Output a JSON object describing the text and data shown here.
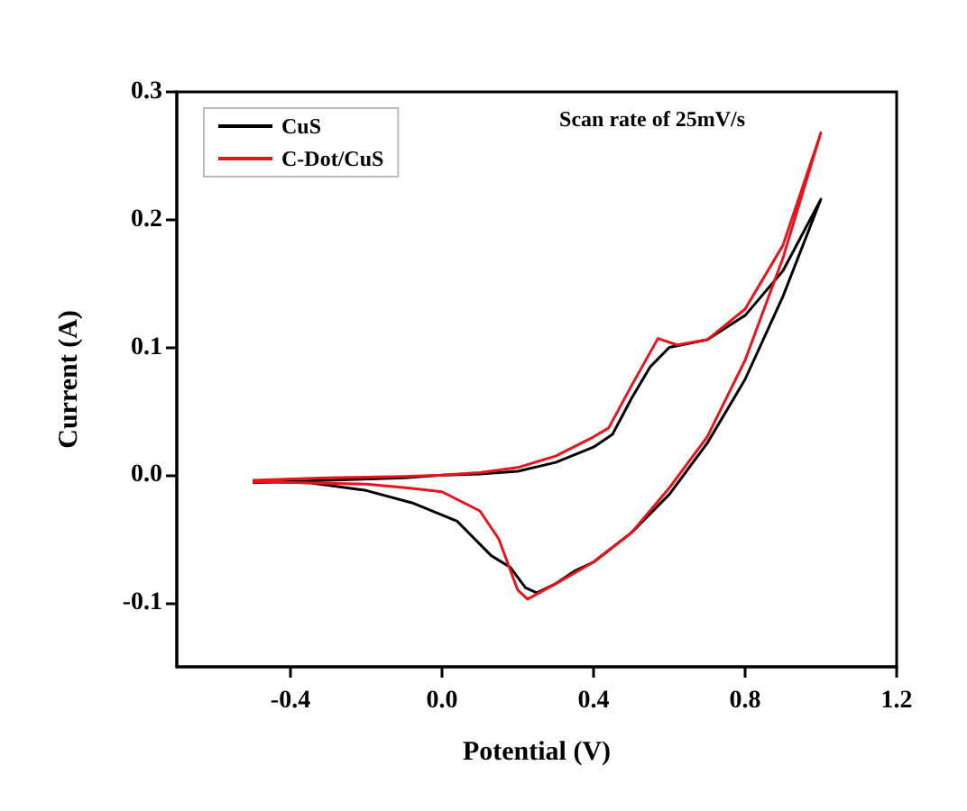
{
  "chart_data": {
    "type": "line",
    "xlabel": "Potential (V)",
    "ylabel": "Current (A)",
    "annotations": [
      "Scan rate of 25mV/s"
    ],
    "xlim": [
      -0.7,
      1.2
    ],
    "ylim": [
      -0.15,
      0.3
    ],
    "xticks": [
      {
        "value": -0.4,
        "label": "-0.4"
      },
      {
        "value": 0,
        "label": "0.0"
      },
      {
        "value": 0.4,
        "label": "0.4"
      },
      {
        "value": 0.8,
        "label": "0.8"
      },
      {
        "value": 1.2,
        "label": "1.2"
      }
    ],
    "yticks": [
      {
        "value": -0.1,
        "label": "-0.1"
      },
      {
        "value": 0,
        "label": "0.0"
      },
      {
        "value": 0.1,
        "label": "0.1"
      },
      {
        "value": 0.2,
        "label": "0.2"
      },
      {
        "value": 0.3,
        "label": "0.3"
      }
    ],
    "grid": false,
    "legend": "top left",
    "marker": "none",
    "line_style": "solid",
    "series": [
      {
        "name": "CuS",
        "color": "#000000",
        "x": [
          -0.5,
          -0.3,
          -0.1,
          0.0,
          0.1,
          0.2,
          0.3,
          0.4,
          0.45,
          0.5,
          0.55,
          0.6,
          0.65,
          0.7,
          0.8,
          0.9,
          1.0,
          0.9,
          0.8,
          0.7,
          0.6,
          0.5,
          0.4,
          0.35,
          0.3,
          0.25,
          0.22,
          0.18,
          0.13,
          0.04,
          -0.075,
          -0.2,
          -0.35,
          -0.5
        ],
        "values": [
          -0.006,
          -0.004,
          -0.002,
          0.0,
          0.001,
          0.003,
          0.01,
          0.022,
          0.032,
          0.06,
          0.085,
          0.1,
          0.103,
          0.106,
          0.125,
          0.16,
          0.216,
          0.14,
          0.075,
          0.025,
          -0.015,
          -0.045,
          -0.068,
          -0.075,
          -0.085,
          -0.092,
          -0.088,
          -0.072,
          -0.063,
          -0.036,
          -0.022,
          -0.012,
          -0.006,
          -0.005
        ]
      },
      {
        "name": "C-Dot/CuS",
        "color": "#e8141b",
        "x": [
          -0.5,
          -0.3,
          -0.1,
          0.0,
          0.1,
          0.2,
          0.3,
          0.4,
          0.44,
          0.5,
          0.57,
          0.62,
          0.7,
          0.8,
          0.9,
          1.0,
          0.9,
          0.8,
          0.7,
          0.6,
          0.5,
          0.4,
          0.3,
          0.226,
          0.2,
          0.15,
          0.1,
          0.0,
          -0.09,
          -0.2,
          -0.5
        ],
        "values": [
          -0.004,
          -0.002,
          -0.001,
          0.0,
          0.002,
          0.006,
          0.015,
          0.03,
          0.037,
          0.07,
          0.107,
          0.102,
          0.106,
          0.13,
          0.18,
          0.268,
          0.17,
          0.09,
          0.03,
          -0.01,
          -0.045,
          -0.068,
          -0.085,
          -0.097,
          -0.09,
          -0.05,
          -0.028,
          -0.013,
          -0.01,
          -0.007,
          -0.005
        ]
      }
    ]
  }
}
